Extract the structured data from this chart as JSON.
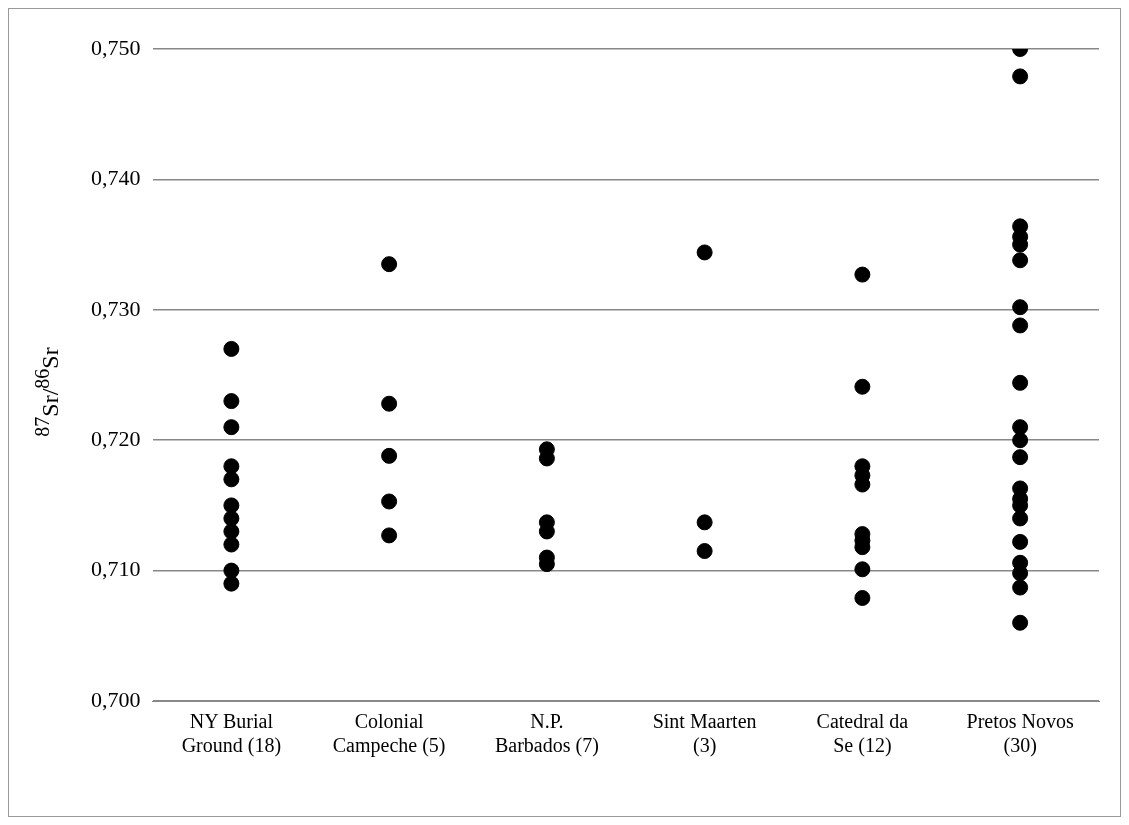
{
  "chart_data": {
    "type": "scatter",
    "ylabel": "$^{87}$Sr/$^{86}$Sr",
    "categories": [
      "NY Burial Ground (18)",
      "Colonial Campeche (5)",
      "N.P. Barbados (7)",
      "Sint Maarten (3)",
      "Catedral da Se (12)",
      "Pretos Novos (30)"
    ],
    "series": [
      {
        "color": "#000000",
        "x": [
          "NY Burial Ground (18)",
          "NY Burial Ground (18)",
          "NY Burial Ground (18)",
          "NY Burial Ground (18)",
          "NY Burial Ground (18)",
          "NY Burial Ground (18)",
          "NY Burial Ground (18)",
          "NY Burial Ground (18)",
          "NY Burial Ground (18)",
          "NY Burial Ground (18)",
          "NY Burial Ground (18)",
          "Colonial Campeche (5)",
          "Colonial Campeche (5)",
          "Colonial Campeche (5)",
          "Colonial Campeche (5)",
          "Colonial Campeche (5)",
          "N.P. Barbados (7)",
          "N.P. Barbados (7)",
          "N.P. Barbados (7)",
          "N.P. Barbados (7)",
          "N.P. Barbados (7)",
          "N.P. Barbados (7)",
          "Sint Maarten (3)",
          "Sint Maarten (3)",
          "Sint Maarten (3)",
          "Catedral da Se (12)",
          "Catedral da Se (12)",
          "Catedral da Se (12)",
          "Catedral da Se (12)",
          "Catedral da Se (12)",
          "Catedral da Se (12)",
          "Catedral da Se (12)",
          "Catedral da Se (12)",
          "Catedral da Se (12)",
          "Catedral da Se (12)",
          "Pretos Novos (30)",
          "Pretos Novos (30)",
          "Pretos Novos (30)",
          "Pretos Novos (30)",
          "Pretos Novos (30)",
          "Pretos Novos (30)",
          "Pretos Novos (30)",
          "Pretos Novos (30)",
          "Pretos Novos (30)",
          "Pretos Novos (30)",
          "Pretos Novos (30)",
          "Pretos Novos (30)",
          "Pretos Novos (30)",
          "Pretos Novos (30)",
          "Pretos Novos (30)",
          "Pretos Novos (30)",
          "Pretos Novos (30)",
          "Pretos Novos (30)",
          "Pretos Novos (30)",
          "Pretos Novos (30)",
          "Pretos Novos (30)"
        ],
        "values": [
          0.727,
          0.723,
          0.721,
          0.718,
          0.717,
          0.715,
          0.714,
          0.713,
          0.712,
          0.71,
          0.709,
          0.7335,
          0.7228,
          0.7188,
          0.7153,
          0.7127,
          0.7193,
          0.7186,
          0.7137,
          0.713,
          0.711,
          0.7105,
          0.7344,
          0.7137,
          0.7115,
          0.7327,
          0.7241,
          0.718,
          0.7173,
          0.7166,
          0.7128,
          0.7123,
          0.7118,
          0.7101,
          0.7079,
          0.75,
          0.7479,
          0.7364,
          0.7356,
          0.735,
          0.7338,
          0.7302,
          0.7288,
          0.7244,
          0.721,
          0.72,
          0.7187,
          0.7163,
          0.7155,
          0.715,
          0.714,
          0.7122,
          0.7106,
          0.7098,
          0.7087,
          0.706
        ]
      }
    ],
    "ylim": [
      0.7,
      0.75
    ],
    "yticks": [
      {
        "value": 0.7,
        "label": "0,700"
      },
      {
        "value": 0.71,
        "label": "0,710"
      },
      {
        "value": 0.72,
        "label": "0,720"
      },
      {
        "value": 0.73,
        "label": "0,730"
      },
      {
        "value": 0.74,
        "label": "0,740"
      },
      {
        "value": 0.75,
        "label": "0,750"
      }
    ],
    "grid": "y",
    "marker": "circle",
    "legend": false
  }
}
